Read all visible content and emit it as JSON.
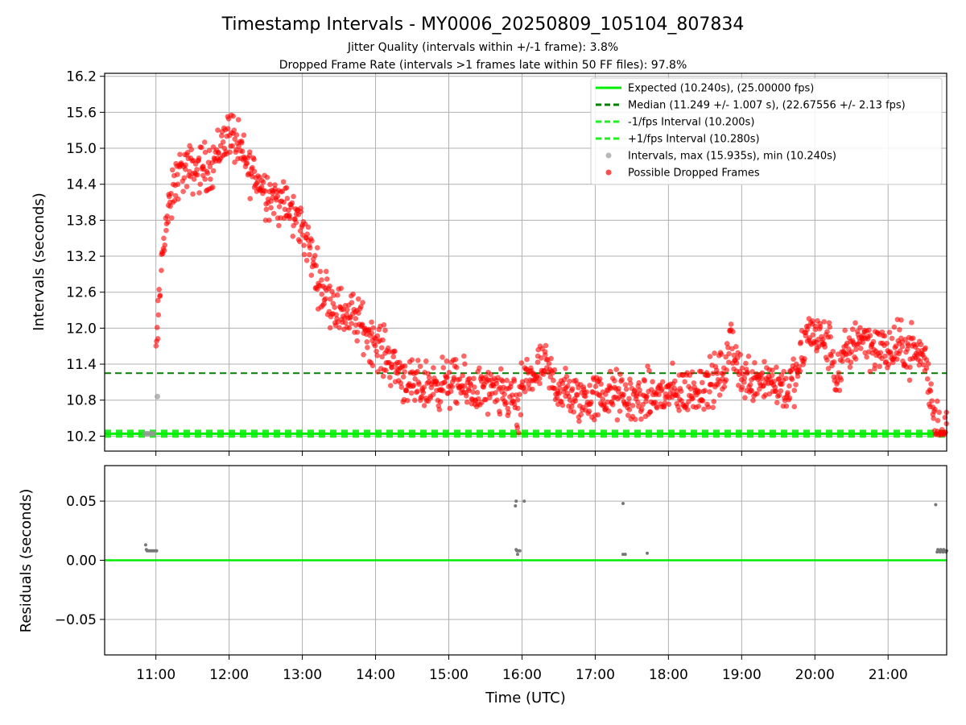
{
  "chart_data": {
    "title": "Timestamp Intervals - MY0006_20250809_105104_807834",
    "subtitles": [
      "Jitter Quality (intervals within +/-1 frame): 3.8%",
      "Dropped Frame Rate (intervals >1 frames late within 50 FF files): 97.8%"
    ],
    "xlabel": "Time (UTC)",
    "x_ticks": [
      "11:00",
      "12:00",
      "13:00",
      "14:00",
      "15:00",
      "16:00",
      "17:00",
      "18:00",
      "19:00",
      "20:00",
      "21:00"
    ],
    "x_tick_hours": [
      11,
      12,
      13,
      14,
      15,
      16,
      17,
      18,
      19,
      20,
      21
    ],
    "xlim_hours": [
      10.3,
      21.8
    ],
    "top": {
      "type": "scatter",
      "ylabel": "Intervals (seconds)",
      "ylim": [
        9.95,
        16.25
      ],
      "y_ticks": [
        "10.2",
        "10.8",
        "11.4",
        "12.0",
        "12.6",
        "13.2",
        "13.8",
        "14.4",
        "15.0",
        "15.6",
        "16.2"
      ],
      "y_tick_values": [
        10.2,
        10.8,
        11.4,
        12.0,
        12.6,
        13.2,
        13.8,
        14.4,
        15.0,
        15.6,
        16.2
      ],
      "grid": true,
      "legend_position": "top-right",
      "legend": [
        {
          "label": "Expected (10.240s), (25.00000 fps)",
          "kind": "solid-line",
          "color": "#00ee00"
        },
        {
          "label": "Median (11.249 +/- 1.007 s), (22.67556 +/- 2.13 fps)",
          "kind": "dashed-line",
          "color": "#008000"
        },
        {
          "label": "-1/fps Interval (10.200s)",
          "kind": "dashed-line",
          "color": "#22ee22"
        },
        {
          "label": "+1/fps Interval (10.280s)",
          "kind": "dashed-line",
          "color": "#22ee22"
        },
        {
          "label": "Intervals, max (15.935s), min (10.240s)",
          "kind": "marker",
          "color": "#999999"
        },
        {
          "label": "Possible Dropped Frames",
          "kind": "marker",
          "color": "#ff0000"
        }
      ],
      "reference_lines": {
        "expected": 10.24,
        "median": 11.249,
        "minus_one_fps": 10.2,
        "plus_one_fps": 10.28
      },
      "trend_hours": [
        10.85,
        10.98,
        11.0,
        11.1,
        11.3,
        11.5,
        11.75,
        12.0,
        12.25,
        12.5,
        12.75,
        13.0,
        13.25,
        13.5,
        13.75,
        14.0,
        14.25,
        14.5,
        14.75,
        15.0,
        15.25,
        15.5,
        15.75,
        15.9,
        15.95,
        16.0,
        16.3,
        16.5,
        16.75,
        17.0,
        17.25,
        17.5,
        17.75,
        18.0,
        18.3,
        18.6,
        18.8,
        18.85,
        19.0,
        19.3,
        19.6,
        19.75,
        19.9,
        20.05,
        20.2,
        20.3,
        20.4,
        20.6,
        20.8,
        21.0,
        21.2,
        21.4,
        21.5,
        21.55,
        21.65,
        21.8
      ],
      "trend_values": [
        10.24,
        10.24,
        11.5,
        13.5,
        14.6,
        14.65,
        14.7,
        15.3,
        14.7,
        14.3,
        14.05,
        13.7,
        12.7,
        12.3,
        12.15,
        11.75,
        11.4,
        11.0,
        11.05,
        11.1,
        11.0,
        10.95,
        10.85,
        10.9,
        10.3,
        11.1,
        11.35,
        11.0,
        10.8,
        10.85,
        10.9,
        10.8,
        10.85,
        10.9,
        10.95,
        11.1,
        11.3,
        11.9,
        11.15,
        11.2,
        11.0,
        11.15,
        11.95,
        11.85,
        11.7,
        11.15,
        11.5,
        11.9,
        11.7,
        11.6,
        11.7,
        11.6,
        11.5,
        11.1,
        10.4,
        10.26
      ],
      "scatter_spread": 0.2,
      "scatter_count": 1400,
      "gray_points": [
        [
          10.85,
          10.24
        ],
        [
          10.88,
          10.24
        ],
        [
          10.91,
          10.24
        ],
        [
          10.94,
          10.24
        ],
        [
          10.97,
          10.24
        ],
        [
          11.02,
          10.86
        ]
      ]
    },
    "bottom": {
      "type": "scatter",
      "ylabel": "Residuals (seconds)",
      "ylim": [
        -0.08,
        0.08
      ],
      "y_ticks": [
        "0.05",
        "0.00",
        "−0.05"
      ],
      "y_tick_values": [
        0.05,
        0.0,
        -0.05
      ],
      "zero_line_color": "#00ee00",
      "points": [
        [
          10.86,
          0.013
        ],
        [
          10.87,
          0.009
        ],
        [
          10.88,
          0.008
        ],
        [
          10.9,
          0.008
        ],
        [
          10.92,
          0.008
        ],
        [
          10.94,
          0.008
        ],
        [
          10.96,
          0.008
        ],
        [
          10.98,
          0.008
        ],
        [
          11.0,
          0.008
        ],
        [
          11.01,
          0.008
        ],
        [
          15.91,
          0.046
        ],
        [
          15.92,
          0.05
        ],
        [
          15.92,
          0.009
        ],
        [
          15.93,
          0.008
        ],
        [
          15.94,
          0.005
        ],
        [
          15.95,
          0.008
        ],
        [
          15.97,
          0.008
        ],
        [
          16.03,
          0.05
        ],
        [
          17.38,
          0.048
        ],
        [
          17.38,
          0.005
        ],
        [
          17.41,
          0.005
        ],
        [
          17.71,
          0.006
        ],
        [
          21.65,
          0.047
        ],
        [
          21.67,
          0.007
        ],
        [
          21.68,
          0.009
        ],
        [
          21.7,
          0.008
        ],
        [
          21.71,
          0.007
        ],
        [
          21.72,
          0.009
        ],
        [
          21.73,
          0.008
        ],
        [
          21.74,
          0.008
        ],
        [
          21.75,
          0.007
        ],
        [
          21.76,
          0.009
        ],
        [
          21.77,
          0.008
        ],
        [
          21.78,
          0.008
        ],
        [
          21.79,
          0.007
        ],
        [
          21.8,
          0.008
        ]
      ]
    }
  }
}
